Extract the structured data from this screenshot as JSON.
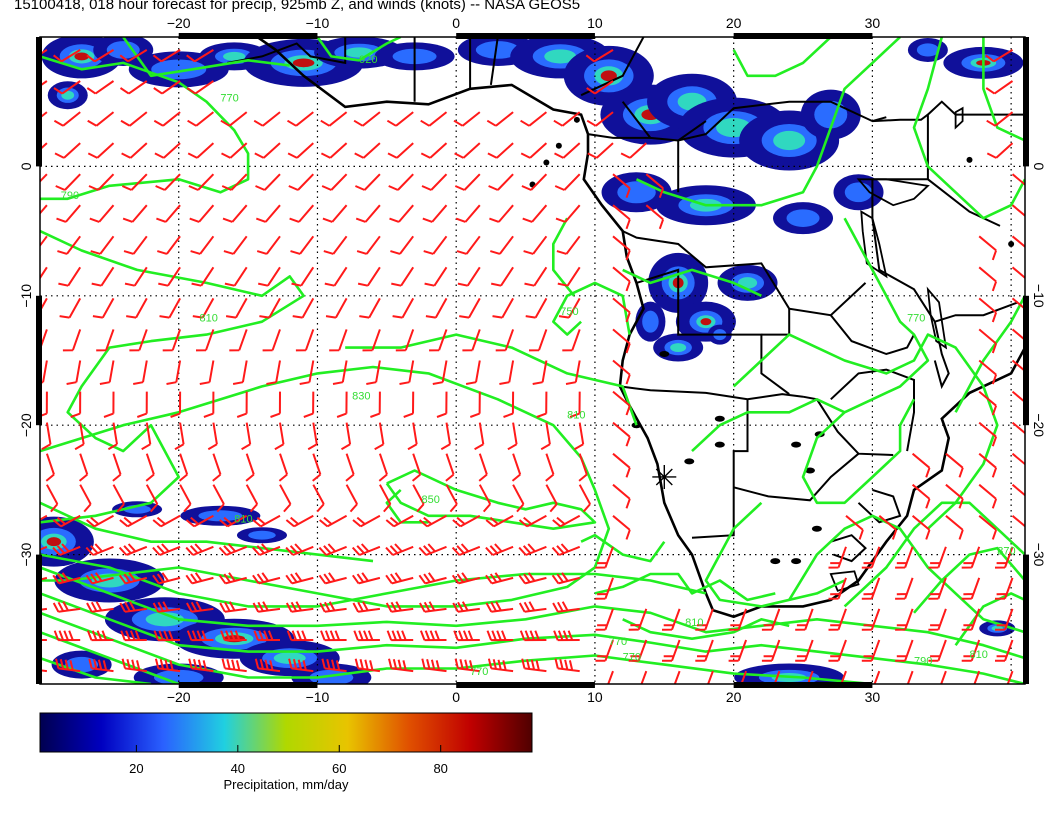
{
  "title": "15100418, 018 hour forecast for precip, 925mb Z, and winds (knots) -- NASA GEOS5",
  "map": {
    "lon_range": [
      -30,
      41
    ],
    "lat_range": [
      -40,
      10
    ],
    "lon_ticks": [
      -20,
      -10,
      0,
      10,
      20,
      30
    ],
    "lat_ticks": [
      0,
      -10,
      -20,
      -30
    ],
    "lon_labels": [
      "−20",
      "−10",
      "0",
      "10",
      "20",
      "30"
    ],
    "lat_labels": [
      "0",
      "−10",
      "−20",
      "−30"
    ],
    "colors": {
      "ocean": "#ffffff",
      "coast": "#000000",
      "contour": "#22ee22",
      "barb": "#ff1a1a",
      "grid": "#000000"
    },
    "contour_labels": [
      {
        "text": "790",
        "lon": -28.5,
        "lat": -2.5
      },
      {
        "text": "810",
        "lon": -18.5,
        "lat": -12
      },
      {
        "text": "830",
        "lon": -7.5,
        "lat": -18
      },
      {
        "text": "810",
        "lon": 8,
        "lat": -19.5
      },
      {
        "text": "850",
        "lon": -2.5,
        "lat": -26
      },
      {
        "text": "810",
        "lon": -16,
        "lat": -27.5
      },
      {
        "text": "810",
        "lon": 16.5,
        "lat": -35.5
      },
      {
        "text": "770",
        "lon": 11,
        "lat": -37
      },
      {
        "text": "770",
        "lon": 12,
        "lat": -38.2
      },
      {
        "text": "790",
        "lon": 33,
        "lat": -38.5
      },
      {
        "text": "810",
        "lon": 37,
        "lat": -38
      },
      {
        "text": "870",
        "lon": 39,
        "lat": -30
      },
      {
        "text": "770",
        "lon": 1,
        "lat": -39.3
      },
      {
        "text": "750",
        "lon": 7.5,
        "lat": -11.5
      },
      {
        "text": "770",
        "lon": 32.5,
        "lat": -12
      },
      {
        "text": "920",
        "lon": -7,
        "lat": 8
      },
      {
        "text": "770",
        "lon": -17,
        "lat": 5
      }
    ],
    "marker": {
      "lon": 15,
      "lat": -24
    }
  },
  "colorbar": {
    "min": 1,
    "max": 98,
    "ticks": [
      20,
      40,
      60,
      80
    ],
    "tick_labels": [
      "20",
      "40",
      "60",
      "80"
    ],
    "label": "Precipitation, mm/day",
    "stops": [
      "#000050",
      "#0000c0",
      "#2a60ff",
      "#20d0e0",
      "#b0d800",
      "#e8c400",
      "#e05000",
      "#c00000",
      "#500000"
    ]
  }
}
